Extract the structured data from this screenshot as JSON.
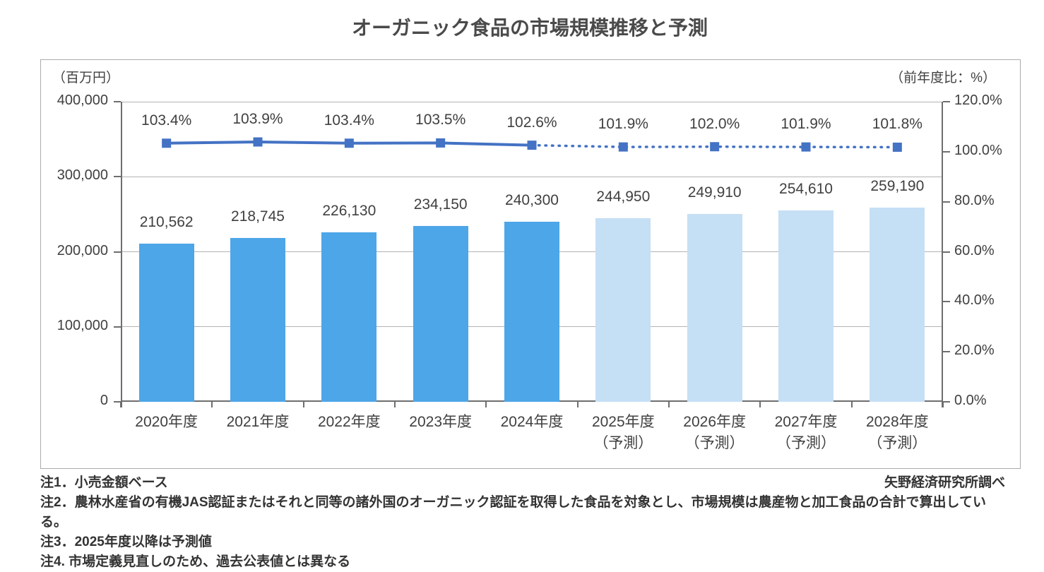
{
  "title": "オーガニック食品の市場規模推移と予測",
  "source": "矢野経済研究所調べ",
  "notes": [
    "注1．小売金額ベース",
    "注2．農林水産省の有機JAS認証またはそれと同等の諸外国のオーガニック認証を取得した食品を対象とし、市場規模は農産物と加工食品の合計で算出している。",
    "注3．2025年度以降は予測値",
    "注4. 市場定義見直しのため、過去公表値とは異なる"
  ],
  "chart_data": {
    "type": "bar",
    "subtype": "combo-bar-line-dual-axis",
    "grid": true,
    "legend": "none",
    "categories": [
      {
        "label": "2020年度",
        "note": ""
      },
      {
        "label": "2021年度",
        "note": ""
      },
      {
        "label": "2022年度",
        "note": ""
      },
      {
        "label": "2023年度",
        "note": ""
      },
      {
        "label": "2024年度",
        "note": ""
      },
      {
        "label": "2025年度",
        "note": "（予測）"
      },
      {
        "label": "2026年度",
        "note": "（予測）"
      },
      {
        "label": "2027年度",
        "note": "（予測）"
      },
      {
        "label": "2028年度",
        "note": "（予測）"
      }
    ],
    "series": [
      {
        "name": "市場規模（百万円）",
        "type": "bar",
        "axis": "left",
        "values": [
          210562,
          218745,
          226130,
          234150,
          240300,
          244950,
          249910,
          254610,
          259190
        ],
        "labels": [
          "210,562",
          "218,745",
          "226,130",
          "234,150",
          "240,300",
          "244,950",
          "249,910",
          "254,610",
          "259,190"
        ],
        "forecast_from_index": 5
      },
      {
        "name": "前年度比（%）",
        "type": "line",
        "axis": "right",
        "values": [
          103.4,
          103.9,
          103.4,
          103.5,
          102.6,
          101.9,
          102.0,
          101.9,
          101.8
        ],
        "labels": [
          "103.4%",
          "103.9%",
          "103.4%",
          "103.5%",
          "102.6%",
          "101.9%",
          "102.0%",
          "101.9%",
          "101.8%"
        ],
        "forecast_from_index": 5
      }
    ],
    "left_axis": {
      "label": "（百万円）",
      "min": 0,
      "max": 400000,
      "ticks": [
        "400,000",
        "300,000",
        "200,000",
        "100,000",
        "0"
      ]
    },
    "right_axis": {
      "label": "（前年度比：%）",
      "min": 0,
      "max": 120,
      "ticks": [
        "120.0%",
        "100.0%",
        "80.0%",
        "60.0%",
        "40.0%",
        "20.0%",
        "0.0%"
      ]
    },
    "colors": {
      "bar_actual": "#4DA6E8",
      "bar_forecast": "#C5DFF5",
      "line": "#4472C4",
      "grid": "#B3B3B3",
      "axis": "#6E6E6E",
      "text": "#404040",
      "border": "#ABABAB"
    }
  }
}
